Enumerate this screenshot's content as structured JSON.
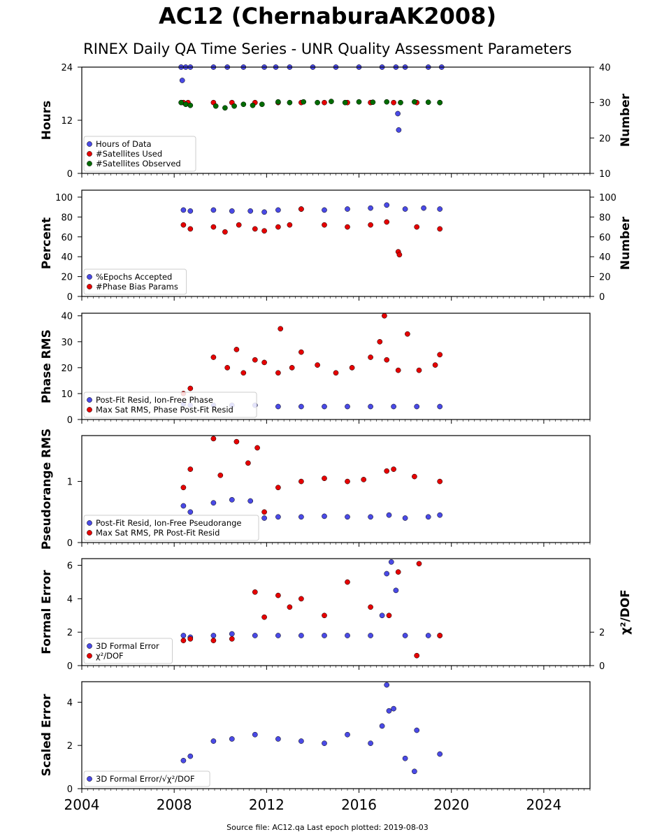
{
  "title": "AC12 (ChernaburaAK2008)",
  "subtitle": "RINEX Daily QA Time Series - UNR Quality Assessment Parameters",
  "footer": "Source file: AC12.qa Last epoch plotted: 2019-08-03",
  "colors": {
    "blue": "#4a4ae6",
    "red": "#e60000",
    "green": "#006b00",
    "edge": "#000000"
  },
  "chart_data": [
    {
      "type": "scatter",
      "ylabel": "Hours",
      "ylabel2": "Number",
      "ylim": [
        0,
        24
      ],
      "yticks": [
        0,
        12,
        24
      ],
      "y2lim": [
        10,
        40
      ],
      "y2ticks": [
        10,
        20,
        30,
        40
      ],
      "legend": "lower-left",
      "series": [
        {
          "name": "Hours of Data",
          "color": "blue",
          "axis": "left",
          "x": [
            2008.3,
            2008.5,
            2008.7,
            2009.7,
            2010.3,
            2011.0,
            2011.9,
            2012.4,
            2013.0,
            2014.0,
            2015.0,
            2016.0,
            2017.0,
            2017.6,
            2018.0,
            2019.0,
            2019.58,
            2008.35,
            2017.68,
            2017.72
          ],
          "y": [
            24,
            24,
            24,
            24,
            24,
            24,
            24,
            24,
            24,
            24,
            24,
            24,
            24,
            24,
            24,
            24,
            24,
            21,
            13.5,
            9.8
          ]
        },
        {
          "name": "#Satellites Used",
          "color": "red",
          "axis": "right",
          "x": [
            2008.4,
            2008.6,
            2009.7,
            2010.5,
            2011.5,
            2012.5,
            2013.5,
            2014.5,
            2015.5,
            2016.5,
            2017.5,
            2018.5,
            2019.5
          ],
          "y": [
            30,
            30,
            30,
            30,
            30,
            30,
            30,
            30,
            30,
            30,
            30,
            30,
            30
          ]
        },
        {
          "name": "#Satellites Observed",
          "color": "green",
          "axis": "right",
          "x": [
            2008.3,
            2008.5,
            2008.7,
            2009.8,
            2010.2,
            2010.6,
            2011.0,
            2011.4,
            2011.8,
            2012.5,
            2013.0,
            2013.6,
            2014.2,
            2014.8,
            2015.4,
            2016.0,
            2016.6,
            2017.2,
            2017.8,
            2018.4,
            2019.0,
            2019.5
          ],
          "y": [
            30,
            29.5,
            29.2,
            29,
            28.5,
            29,
            29.5,
            29.2,
            29.5,
            30.2,
            30,
            30.2,
            30,
            30.3,
            30,
            30.2,
            30.1,
            30.2,
            30,
            30.2,
            30.1,
            30
          ]
        }
      ]
    },
    {
      "type": "scatter",
      "ylabel": "Percent",
      "ylabel2": "Number",
      "ylim": [
        0,
        107
      ],
      "yticks": [
        0,
        20,
        40,
        60,
        80,
        100
      ],
      "y2ticks": [
        0,
        20,
        40,
        60,
        80,
        100
      ],
      "legend": "lower-left",
      "series": [
        {
          "name": "%Epochs Accepted",
          "color": "blue",
          "x": [
            2008.4,
            2008.7,
            2009.7,
            2010.5,
            2011.3,
            2011.9,
            2012.5,
            2013.5,
            2014.5,
            2015.5,
            2016.5,
            2017.2,
            2018.0,
            2018.8,
            2019.5
          ],
          "y": [
            87,
            86,
            87,
            86,
            86,
            85,
            87,
            88,
            87,
            88,
            89,
            92,
            88,
            89,
            88
          ]
        },
        {
          "name": "#Phase Bias Params",
          "color": "red",
          "x": [
            2008.4,
            2008.7,
            2009.7,
            2010.2,
            2010.8,
            2011.5,
            2011.9,
            2012.5,
            2013.0,
            2013.5,
            2014.5,
            2015.5,
            2016.5,
            2017.2,
            2017.7,
            2017.75,
            2018.5,
            2019.5
          ],
          "y": [
            72,
            68,
            70,
            65,
            72,
            68,
            66,
            70,
            72,
            88,
            72,
            70,
            72,
            75,
            45,
            42,
            70,
            68
          ]
        }
      ]
    },
    {
      "type": "scatter",
      "ylabel": "Phase RMS",
      "ylim": [
        0,
        41
      ],
      "yticks": [
        0,
        10,
        20,
        30,
        40
      ],
      "legend": "lower-left",
      "series": [
        {
          "name": "Post-Fit Resid, Ion-Free Phase",
          "color": "blue",
          "x": [
            2008.4,
            2008.7,
            2009.7,
            2010.5,
            2011.5,
            2012.5,
            2013.5,
            2014.5,
            2015.5,
            2016.5,
            2017.5,
            2018.5,
            2019.5
          ],
          "y": [
            6,
            5.5,
            5.5,
            5.5,
            5.5,
            5,
            5,
            5,
            5,
            5,
            5,
            5,
            5
          ]
        },
        {
          "name": "Max Sat RMS, Phase Post-Fit Resid",
          "color": "red",
          "x": [
            2008.4,
            2008.7,
            2009.7,
            2010.3,
            2010.7,
            2011.0,
            2011.5,
            2011.9,
            2012.5,
            2012.6,
            2013.1,
            2013.5,
            2014.2,
            2015.0,
            2015.7,
            2016.5,
            2016.9,
            2017.1,
            2017.2,
            2017.7,
            2018.1,
            2018.6,
            2019.3,
            2019.5
          ],
          "y": [
            10,
            12,
            24,
            20,
            27,
            18,
            23,
            22,
            18,
            35,
            20,
            26,
            21,
            18,
            20,
            24,
            30,
            40,
            23,
            19,
            33,
            19,
            21,
            25
          ]
        }
      ]
    },
    {
      "type": "scatter",
      "ylabel": "Pseudorange RMS",
      "ylim": [
        0,
        1.75
      ],
      "yticks": [
        0,
        1
      ],
      "legend": "lower-left",
      "series": [
        {
          "name": "Post-Fit Resid, Ion-Free Pseudorange",
          "color": "blue",
          "x": [
            2008.4,
            2008.7,
            2009.7,
            2010.5,
            2011.3,
            2011.9,
            2012.5,
            2013.5,
            2014.5,
            2015.5,
            2016.5,
            2017.3,
            2018.0,
            2019.0,
            2019.5
          ],
          "y": [
            0.6,
            0.5,
            0.65,
            0.7,
            0.68,
            0.4,
            0.42,
            0.42,
            0.43,
            0.42,
            0.42,
            0.45,
            0.4,
            0.42,
            0.45
          ]
        },
        {
          "name": "Max Sat RMS, PR Post-Fit Resid",
          "color": "red",
          "x": [
            2008.4,
            2008.7,
            2009.7,
            2010.0,
            2010.7,
            2011.2,
            2011.6,
            2011.9,
            2012.5,
            2013.5,
            2014.5,
            2015.5,
            2016.2,
            2017.2,
            2017.5,
            2018.4,
            2019.5
          ],
          "y": [
            0.9,
            1.2,
            1.7,
            1.1,
            1.65,
            1.3,
            1.55,
            0.5,
            0.9,
            1.0,
            1.05,
            1.0,
            1.03,
            1.17,
            1.2,
            1.08,
            1.0
          ]
        }
      ]
    },
    {
      "type": "scatter",
      "ylabel": "Formal Error",
      "ylabel2": "χ²/DOF",
      "ylim": [
        0,
        6.4
      ],
      "yticks": [
        0,
        2,
        4,
        6
      ],
      "y2ticks": [
        0,
        2
      ],
      "legend": "lower-left",
      "series": [
        {
          "name": "3D Formal Error",
          "color": "blue",
          "x": [
            2008.4,
            2008.7,
            2009.7,
            2010.5,
            2011.5,
            2012.5,
            2013.5,
            2014.5,
            2015.5,
            2016.5,
            2017.0,
            2017.2,
            2017.4,
            2017.6,
            2018.0,
            2019.0,
            2019.5
          ],
          "y": [
            1.8,
            1.7,
            1.8,
            1.9,
            1.8,
            1.8,
            1.8,
            1.8,
            1.8,
            1.8,
            3.0,
            5.5,
            6.2,
            4.5,
            1.8,
            1.8,
            1.8
          ]
        },
        {
          "name": "χ²/DOF",
          "color": "red",
          "x": [
            2008.4,
            2008.7,
            2009.7,
            2010.5,
            2011.5,
            2011.9,
            2012.5,
            2013.0,
            2013.5,
            2014.5,
            2015.5,
            2016.5,
            2017.3,
            2017.7,
            2018.5,
            2018.6,
            2019.5
          ],
          "y": [
            1.5,
            1.6,
            1.5,
            1.6,
            4.4,
            2.9,
            4.2,
            3.5,
            4.0,
            3.0,
            5.0,
            3.5,
            3.0,
            5.6,
            0.6,
            6.1,
            1.8
          ]
        }
      ]
    },
    {
      "type": "scatter",
      "ylabel": "Scaled Error",
      "ylim": [
        0,
        4.95
      ],
      "yticks": [
        0,
        2,
        4
      ],
      "xlim": [
        2004,
        2026
      ],
      "xticks": [
        2004,
        2008,
        2012,
        2016,
        2020,
        2024
      ],
      "legend": "lower-left",
      "series": [
        {
          "name": "3D Formal Error/√χ²/DOF",
          "color": "blue",
          "x": [
            2008.4,
            2008.7,
            2009.7,
            2010.5,
            2011.5,
            2012.5,
            2013.5,
            2014.5,
            2015.5,
            2016.5,
            2017.0,
            2017.2,
            2017.3,
            2017.5,
            2018.0,
            2018.4,
            2018.5,
            2019.5
          ],
          "y": [
            1.3,
            1.5,
            2.2,
            2.3,
            2.5,
            2.3,
            2.2,
            2.1,
            2.5,
            2.1,
            2.9,
            4.8,
            3.6,
            3.7,
            1.4,
            0.8,
            2.7,
            1.6
          ]
        }
      ]
    }
  ]
}
